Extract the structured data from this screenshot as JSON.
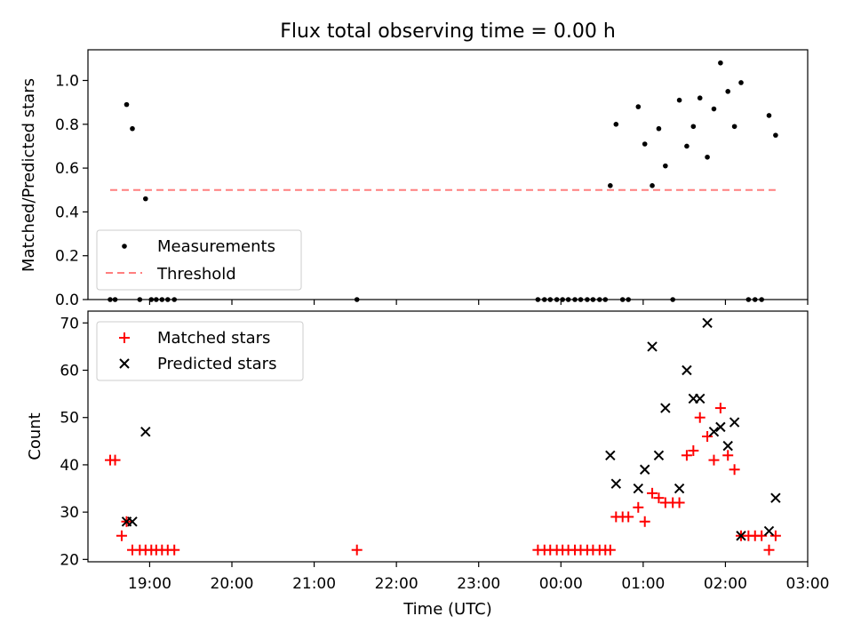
{
  "chart_data": [
    {
      "type": "scatter",
      "title": "Flux total observing time = 0.00 h",
      "xlabel": "",
      "ylabel": "Matched/Predicted stars",
      "xlim": [
        18.25,
        27.0
      ],
      "ylim": [
        0.0,
        1.14
      ],
      "yticks": [
        0.0,
        0.2,
        0.4,
        0.6,
        0.8,
        1.0
      ],
      "yticklabels": [
        "0.0",
        "0.2",
        "0.4",
        "0.6",
        "0.8",
        "1.0"
      ],
      "legend": "lower-left",
      "series": [
        {
          "name": "Measurements",
          "kind": "point",
          "color": "#000000",
          "x": [
            18.52,
            18.58,
            18.72,
            18.79,
            18.88,
            18.95,
            19.02,
            19.08,
            19.15,
            19.22,
            19.3,
            21.52,
            23.72,
            23.8,
            23.87,
            23.95,
            24.02,
            24.09,
            24.17,
            24.24,
            24.32,
            24.39,
            24.47,
            24.54,
            24.6,
            24.67,
            24.75,
            24.82,
            24.94,
            25.02,
            25.11,
            25.19,
            25.27,
            25.36,
            25.44,
            25.53,
            25.61,
            25.69,
            25.78,
            25.86,
            25.94,
            26.03,
            26.11,
            26.19,
            26.28,
            26.36,
            26.44,
            26.53,
            26.61
          ],
          "y": [
            0.0,
            0.0,
            0.89,
            0.78,
            0.0,
            0.46,
            0.0,
            0.0,
            0.0,
            0.0,
            0.0,
            0.0,
            0.0,
            0.0,
            0.0,
            0.0,
            0.0,
            0.0,
            0.0,
            0.0,
            0.0,
            0.0,
            0.0,
            0.0,
            0.52,
            0.8,
            0.0,
            0.0,
            0.88,
            0.71,
            0.52,
            0.78,
            0.61,
            0.0,
            0.91,
            0.7,
            0.79,
            0.92,
            0.65,
            0.87,
            1.08,
            0.95,
            0.79,
            0.99,
            0.0,
            0.0,
            0.0,
            0.84,
            0.75
          ]
        },
        {
          "name": "Threshold",
          "kind": "dashed-line",
          "color": "#ff7f7f",
          "x": [
            18.52,
            26.61
          ],
          "y": [
            0.5,
            0.5
          ]
        }
      ]
    },
    {
      "type": "scatter",
      "title": "",
      "xlabel": "Time (UTC)",
      "ylabel": "Count",
      "xlim": [
        18.25,
        27.0
      ],
      "ylim": [
        19.5,
        72.5
      ],
      "yticks": [
        20,
        30,
        40,
        50,
        60,
        70
      ],
      "yticklabels": [
        "20",
        "30",
        "40",
        "50",
        "60",
        "70"
      ],
      "xticks": [
        19,
        20,
        21,
        22,
        23,
        24,
        25,
        26,
        27
      ],
      "xticklabels": [
        "19:00",
        "20:00",
        "21:00",
        "22:00",
        "23:00",
        "00:00",
        "01:00",
        "02:00",
        "03:00"
      ],
      "legend": "upper-left",
      "series": [
        {
          "name": "Matched stars",
          "kind": "plus",
          "color": "#ff0000",
          "x": [
            18.52,
            18.58,
            18.66,
            18.72,
            18.79,
            18.88,
            18.95,
            19.02,
            19.08,
            19.15,
            19.22,
            19.3,
            21.52,
            23.72,
            23.8,
            23.87,
            23.95,
            24.02,
            24.09,
            24.17,
            24.24,
            24.32,
            24.39,
            24.47,
            24.54,
            24.6,
            24.67,
            24.75,
            24.82,
            24.94,
            25.02,
            25.11,
            25.19,
            25.27,
            25.36,
            25.44,
            25.53,
            25.61,
            25.69,
            25.78,
            25.86,
            25.94,
            26.03,
            26.11,
            26.19,
            26.28,
            26.36,
            26.44,
            26.53,
            26.61
          ],
          "y": [
            41,
            41,
            25,
            28,
            22,
            22,
            22,
            22,
            22,
            22,
            22,
            22,
            22,
            22,
            22,
            22,
            22,
            22,
            22,
            22,
            22,
            22,
            22,
            22,
            22,
            22,
            29,
            29,
            29,
            31,
            28,
            34,
            33,
            32,
            32,
            32,
            42,
            43,
            50,
            46,
            41,
            52,
            42,
            39,
            25,
            25,
            25,
            25,
            22,
            25
          ]
        },
        {
          "name": "Predicted stars",
          "kind": "x",
          "color": "#000000",
          "x": [
            18.72,
            18.79,
            18.95,
            24.6,
            24.67,
            24.94,
            25.02,
            25.11,
            25.19,
            25.27,
            25.44,
            25.53,
            25.61,
            25.69,
            25.78,
            25.86,
            25.94,
            26.03,
            26.11,
            26.19,
            26.53,
            26.61
          ],
          "y": [
            28,
            28,
            47,
            42,
            36,
            35,
            39,
            65,
            42,
            52,
            35,
            60,
            54,
            54,
            70,
            47,
            48,
            44,
            49,
            25,
            26,
            33
          ]
        }
      ]
    }
  ]
}
